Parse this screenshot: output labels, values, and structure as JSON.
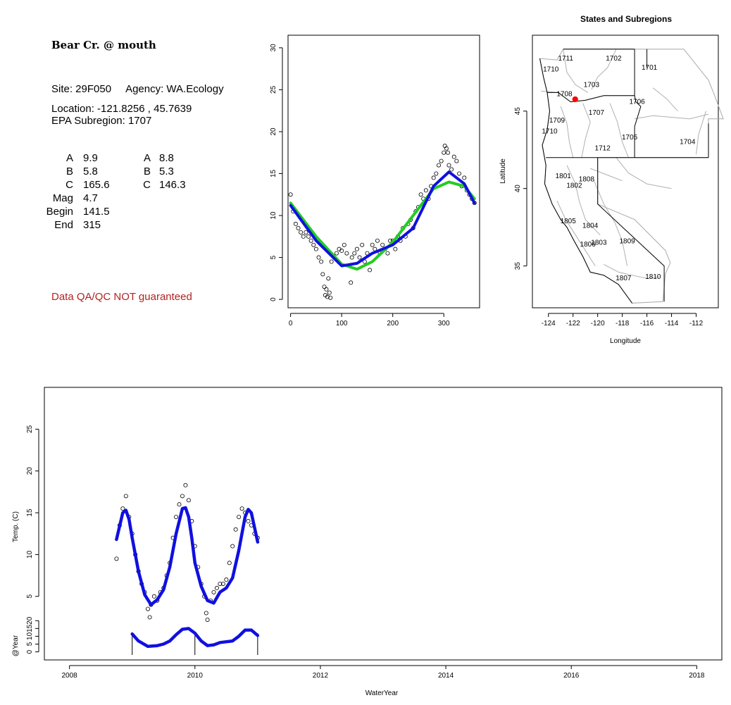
{
  "info_panel": {
    "site_name": "Bear Cr. @ mouth",
    "site_line": "Site: 29F050     Agency: WA.Ecology",
    "location_line": "Location: -121.8256 , 45.7639",
    "subregion_line": "EPA Subregion: 1707",
    "params": [
      {
        "label": "A",
        "value": "9.9",
        "label2": "A",
        "value2": "8.8"
      },
      {
        "label": "B",
        "value": "5.8",
        "label2": "B",
        "value2": "5.3"
      },
      {
        "label": "C",
        "value": "165.6",
        "label2": "C",
        "value2": "146.3"
      },
      {
        "label": "Mag",
        "value": "4.7",
        "label2": "",
        "value2": ""
      },
      {
        "label": "Begin",
        "value": "141.5",
        "label2": "",
        "value2": ""
      },
      {
        "label": "End",
        "value": "315",
        "label2": "",
        "value2": ""
      }
    ],
    "qa_note": "Data QA/QC NOT guaranteed"
  },
  "colors": {
    "points": "#000000",
    "fit_blue": "#1010e0",
    "fit_green": "#22cc22",
    "site_marker": "#ff0000",
    "region_lines": "#b0b0b0",
    "qa_text": "#b22222"
  },
  "chart_data": [
    {
      "id": "seasonal",
      "type": "scatter",
      "title": "",
      "xlabel": "",
      "ylabel": "",
      "xlim": [
        -5,
        370
      ],
      "ylim": [
        -1,
        31.5
      ],
      "x_ticks": [
        0,
        100,
        200,
        300
      ],
      "y_ticks": [
        0,
        5,
        10,
        15,
        20,
        25,
        30
      ],
      "series": [
        {
          "kind": "points",
          "x": [
            0,
            5,
            10,
            15,
            20,
            25,
            30,
            35,
            40,
            45,
            50,
            55,
            60,
            63,
            66,
            68,
            70,
            72,
            74,
            76,
            78,
            80,
            85,
            90,
            95,
            100,
            105,
            110,
            115,
            118,
            120,
            125,
            130,
            135,
            140,
            145,
            150,
            155,
            160,
            165,
            170,
            175,
            180,
            185,
            190,
            195,
            200,
            205,
            210,
            215,
            220,
            225,
            230,
            235,
            240,
            245,
            250,
            255,
            260,
            265,
            270,
            275,
            280,
            285,
            290,
            295,
            300,
            302,
            305,
            308,
            310,
            315,
            320,
            325,
            330,
            335,
            340,
            345,
            350,
            355,
            360
          ],
          "y": [
            12.5,
            10.5,
            9.0,
            8.5,
            8.0,
            7.5,
            8.0,
            7.5,
            7.0,
            6.5,
            6.0,
            5.0,
            4.5,
            3.0,
            1.5,
            0.5,
            1.2,
            0.3,
            2.5,
            0.8,
            0.2,
            4.5,
            5.0,
            5.5,
            6.0,
            5.8,
            6.5,
            5.5,
            4.0,
            2.0,
            5.0,
            5.5,
            6.0,
            5.0,
            6.5,
            4.5,
            5.5,
            3.5,
            6.5,
            6.0,
            7.0,
            5.5,
            6.5,
            6.0,
            5.5,
            7.0,
            7.0,
            6.0,
            7.5,
            7.0,
            8.5,
            7.5,
            9.0,
            9.5,
            8.5,
            10.5,
            11.0,
            12.5,
            12.0,
            13.0,
            12.0,
            13.5,
            14.5,
            15.0,
            16.0,
            16.5,
            17.5,
            18.3,
            18.0,
            17.5,
            16.0,
            15.5,
            17.0,
            16.5,
            15.0,
            13.5,
            14.5,
            13.0,
            12.5,
            12.0,
            11.5
          ]
        },
        {
          "kind": "line",
          "name": "",
          "color": "green",
          "x": [
            0,
            50,
            100,
            130,
            160,
            200,
            240,
            280,
            310,
            340,
            360
          ],
          "y": [
            11.5,
            7.5,
            4.2,
            3.6,
            4.5,
            6.8,
            10.0,
            13.2,
            14.0,
            13.5,
            12.0
          ]
        },
        {
          "kind": "line",
          "name": "",
          "color": "blue",
          "x": [
            0,
            50,
            100,
            130,
            160,
            200,
            240,
            280,
            310,
            340,
            360
          ],
          "y": [
            11.2,
            7.0,
            4.0,
            4.3,
            5.5,
            6.5,
            8.5,
            13.5,
            15.2,
            13.8,
            11.5
          ]
        }
      ]
    },
    {
      "id": "map",
      "type": "scatter",
      "title": "States and Subregions",
      "xlabel": "Longitude",
      "ylabel": "Latitude",
      "xlim": [
        -125.3,
        -110.2
      ],
      "ylim": [
        32.3,
        49.9
      ],
      "x_ticks": [
        -124,
        -122,
        -120,
        -118,
        -116,
        -114,
        -112
      ],
      "y_ticks": [
        35,
        40,
        45
      ],
      "region_labels": [
        {
          "label": "1711",
          "lon": -122.6,
          "lat": 48.4
        },
        {
          "label": "1710",
          "lon": -123.8,
          "lat": 47.7
        },
        {
          "label": "1702",
          "lon": -118.7,
          "lat": 48.4
        },
        {
          "label": "1701",
          "lon": -115.8,
          "lat": 47.8
        },
        {
          "label": "1703",
          "lon": -120.5,
          "lat": 46.7
        },
        {
          "label": "1708",
          "lon": -122.7,
          "lat": 46.1
        },
        {
          "label": "1706",
          "lon": -116.8,
          "lat": 45.6
        },
        {
          "label": "1707",
          "lon": -120.1,
          "lat": 44.9
        },
        {
          "label": "1709",
          "lon": -123.3,
          "lat": 44.4
        },
        {
          "label": "1710",
          "lon": -123.9,
          "lat": 43.7
        },
        {
          "label": "1705",
          "lon": -117.4,
          "lat": 43.3
        },
        {
          "label": "1704",
          "lon": -112.7,
          "lat": 43.0
        },
        {
          "label": "1712",
          "lon": -119.6,
          "lat": 42.6
        },
        {
          "label": "1801",
          "lon": -122.8,
          "lat": 40.8
        },
        {
          "label": "1808",
          "lon": -120.9,
          "lat": 40.6
        },
        {
          "label": "1802",
          "lon": -121.9,
          "lat": 40.2
        },
        {
          "label": "1805",
          "lon": -122.4,
          "lat": 37.9
        },
        {
          "label": "1804",
          "lon": -120.6,
          "lat": 37.6
        },
        {
          "label": "1806",
          "lon": -120.8,
          "lat": 36.4
        },
        {
          "label": "1803",
          "lon": -119.9,
          "lat": 36.5
        },
        {
          "label": "1809",
          "lon": -117.6,
          "lat": 36.6
        },
        {
          "label": "1807",
          "lon": -117.9,
          "lat": 34.2
        },
        {
          "label": "1810",
          "lon": -115.5,
          "lat": 34.3
        }
      ],
      "site": {
        "lon": -121.8256,
        "lat": 45.7639
      }
    },
    {
      "id": "timeseries",
      "type": "line",
      "title": "",
      "xlabel": "WaterYear",
      "ylabel": "Temp. (C)",
      "xlim": [
        2007.6,
        2018.4
      ],
      "ylim": [
        2.2,
        30.0
      ],
      "x_ticks": [
        2008,
        2010,
        2012,
        2014,
        2016,
        2018
      ],
      "y_ticks": [
        5,
        10,
        15,
        20,
        25
      ],
      "series": [
        {
          "kind": "points",
          "x": [
            2008.75,
            2008.8,
            2008.85,
            2008.9,
            2008.95,
            2009.0,
            2009.05,
            2009.1,
            2009.15,
            2009.2,
            2009.25,
            2009.28,
            2009.3,
            2009.35,
            2009.4,
            2009.45,
            2009.5,
            2009.55,
            2009.6,
            2009.65,
            2009.7,
            2009.75,
            2009.8,
            2009.85,
            2009.9,
            2009.95,
            2010.0,
            2010.05,
            2010.1,
            2010.15,
            2010.18,
            2010.2,
            2010.25,
            2010.3,
            2010.35,
            2010.4,
            2010.45,
            2010.5,
            2010.55,
            2010.6,
            2010.65,
            2010.7,
            2010.75,
            2010.8,
            2010.85,
            2010.9,
            2010.95,
            2011.0
          ],
          "y": [
            9.5,
            13.5,
            15.5,
            17.0,
            14.5,
            12.5,
            10.0,
            8.0,
            6.5,
            5.5,
            3.5,
            2.5,
            4.0,
            5.0,
            4.5,
            5.5,
            6.0,
            7.5,
            9.0,
            12.0,
            14.5,
            16.0,
            17.0,
            18.3,
            16.5,
            14.0,
            11.0,
            8.5,
            6.5,
            5.0,
            3.0,
            2.2,
            4.5,
            5.5,
            6.0,
            6.5,
            6.5,
            7.0,
            9.0,
            11.0,
            13.0,
            14.5,
            15.5,
            15.0,
            14.0,
            13.5,
            12.5,
            12.0
          ]
        },
        {
          "kind": "line",
          "name": "",
          "color": "blue",
          "x": [
            2008.75,
            2008.85,
            2008.9,
            2008.95,
            2009.0,
            2009.1,
            2009.2,
            2009.3,
            2009.4,
            2009.5,
            2009.6,
            2009.7,
            2009.8,
            2009.85,
            2009.9,
            2009.95,
            2010.0,
            2010.1,
            2010.2,
            2010.3,
            2010.4,
            2010.5,
            2010.6,
            2010.7,
            2010.8,
            2010.85,
            2010.9,
            2011.0
          ],
          "y": [
            11.8,
            15.0,
            15.3,
            14.2,
            12.0,
            8.0,
            5.2,
            4.0,
            4.6,
            5.8,
            8.5,
            12.5,
            15.5,
            15.6,
            14.5,
            12.0,
            9.0,
            6.2,
            4.5,
            4.2,
            5.5,
            6.0,
            7.2,
            10.5,
            14.5,
            15.4,
            15.0,
            11.5
          ]
        }
      ]
    },
    {
      "id": "year-strip",
      "type": "line",
      "ylabel": "@Year",
      "xlim": [
        2007.6,
        2018.4
      ],
      "ylim": [
        -2,
        26
      ],
      "y_ticks": [
        0,
        5,
        10,
        15,
        20
      ],
      "segment_starts": [
        2009.0,
        2010.0,
        2011.0
      ],
      "series": [
        {
          "kind": "line",
          "name": "",
          "color": "blue",
          "x": [
            2009.0,
            2009.1,
            2009.25,
            2009.4,
            2009.5,
            2009.6,
            2009.7,
            2009.8,
            2009.9,
            2010.0,
            2010.1,
            2010.2,
            2010.3,
            2010.4,
            2010.5,
            2010.6,
            2010.7,
            2010.8,
            2010.9,
            2011.0
          ],
          "y": [
            11.5,
            7.0,
            3.5,
            4.0,
            5.0,
            7.0,
            11.0,
            14.5,
            15.0,
            12.0,
            7.0,
            4.0,
            4.5,
            6.0,
            6.5,
            7.0,
            10.0,
            14.0,
            14.0,
            10.5
          ]
        }
      ]
    }
  ]
}
